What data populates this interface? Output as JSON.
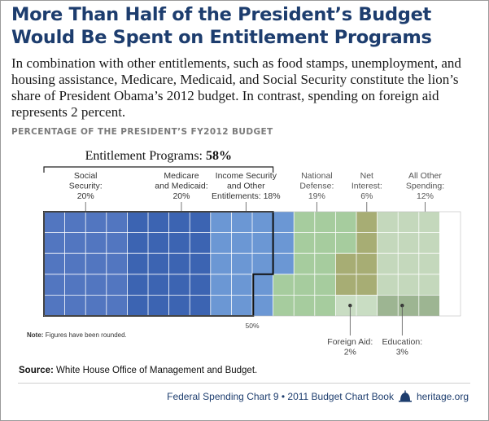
{
  "header": {
    "title": "More Than Half of the President’s Budget Would Be Spent on Entitlement Programs",
    "subtitle": "In combination with other entitlements, such as food stamps, unemployment, and housing assistance, Medicare, Medicaid, and Social Security constitute the lion’s share of President Obama’s 2012 budget. In contrast, spending on foreign aid represents 2 percent.",
    "section_label": "PERCENTAGE OF THE PRESIDENT’S FY2012 BUDGET"
  },
  "colors": {
    "social_security": "#5276c0",
    "medicare_medicaid": "#3c64b2",
    "income_security": "#6b97d4",
    "national_defense": "#a6cc9e",
    "net_interest": "#a7ad74",
    "all_other": "#c4d8bc",
    "foreign_aid": "#c9ddc3",
    "education": "#9db592",
    "grid": "#ffffff",
    "entitlement_border": "#111111",
    "title": "#1d3d6e"
  },
  "chart_data": {
    "type": "waffle",
    "title": "PERCENTAGE OF THE PRESIDENT’S FY2012 BUDGET",
    "grid_total_cells": 100,
    "bracket_label": "Entitlement Programs:",
    "bracket_value": "58%",
    "series": [
      {
        "key": "social_security",
        "name": "Social Security",
        "label_lines": [
          "Social",
          "Security:",
          "20%"
        ],
        "value": 20
      },
      {
        "key": "medicare_medicaid",
        "name": "Medicare and Medicaid",
        "label_lines": [
          "Medicare",
          "and Medicaid:",
          "20%"
        ],
        "value": 20
      },
      {
        "key": "income_security",
        "name": "Income Security and Other Entitlements",
        "label_lines": [
          "Income Security",
          "and Other",
          "Entitlements: 18%"
        ],
        "value": 18
      },
      {
        "key": "national_defense",
        "name": "National Defense",
        "label_lines": [
          "National",
          "Defense:",
          "19%"
        ],
        "value": 19
      },
      {
        "key": "net_interest",
        "name": "Net Interest",
        "label_lines": [
          "Net",
          "Interest:",
          "6%"
        ],
        "value": 6
      },
      {
        "key": "all_other",
        "name": "All Other Spending",
        "label_lines": [
          "All Other",
          "Spending:",
          "12%"
        ],
        "value": 12
      },
      {
        "key": "foreign_aid",
        "name": "Foreign Aid",
        "label_lines": [
          "Foreign Aid:",
          "2%"
        ],
        "value": 2
      },
      {
        "key": "education",
        "name": "Education",
        "label_lines": [
          "Education:",
          "3%"
        ],
        "value": 3
      }
    ],
    "annotation_midpoint": "50%"
  },
  "note": {
    "label": "Note:",
    "text": "Figures have been rounded."
  },
  "source": {
    "label": "Source:",
    "text": "White House Office of Management and Budget."
  },
  "footer": {
    "chart_ref": "Federal Spending Chart 9 • 2011 Budget Chart Book",
    "site": "heritage.org",
    "icon": "liberty-bell-icon"
  }
}
